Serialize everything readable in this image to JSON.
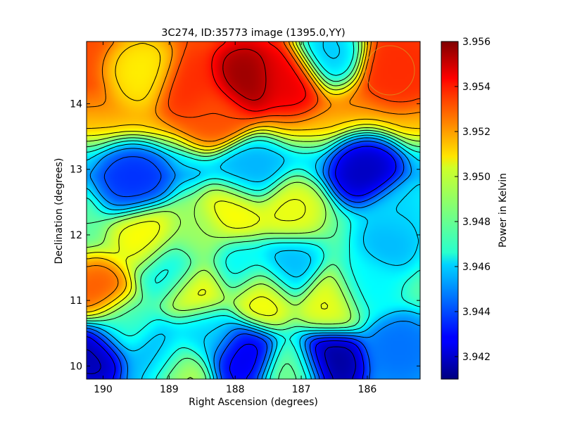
{
  "chart_data": {
    "type": "heatmap",
    "title": "3C274, ID:35773 image (1395.0,YY)",
    "xlabel": "Right Ascension (degrees)",
    "ylabel": "Declination (degrees)",
    "colorbar_label": "Power in Kelvin",
    "x_axis": {
      "range": [
        190.25,
        185.2
      ],
      "direction": "decreasing",
      "ticks": [
        190,
        189,
        188,
        187,
        186
      ]
    },
    "y_axis": {
      "range": [
        9.8,
        14.95
      ],
      "ticks": [
        10,
        11,
        12,
        13,
        14
      ]
    },
    "colorbar": {
      "range": [
        3.941,
        3.956
      ],
      "ticks": [
        "3.942",
        "3.944",
        "3.946",
        "3.948",
        "3.950",
        "3.952",
        "3.954",
        "3.956"
      ]
    },
    "colormap": "jet",
    "contours": true,
    "features": [
      {
        "ra": 187.85,
        "dec": 14.38,
        "value": 3.9557,
        "kind": "peak"
      },
      {
        "ra": 187.2,
        "dec": 14.4,
        "value": 3.9545,
        "kind": "peak"
      },
      {
        "ra": 188.7,
        "dec": 14.25,
        "value": 3.9535,
        "kind": "peak"
      },
      {
        "ra": 188.3,
        "dec": 13.85,
        "value": 3.953,
        "kind": "peak"
      },
      {
        "ra": 185.5,
        "dec": 14.55,
        "value": 3.9535,
        "kind": "peak"
      },
      {
        "ra": 189.4,
        "dec": 14.5,
        "value": 3.9505,
        "kind": "saddle"
      },
      {
        "ra": 186.0,
        "dec": 12.95,
        "value": 3.9418,
        "kind": "trough"
      },
      {
        "ra": 189.55,
        "dec": 12.82,
        "value": 3.9435,
        "kind": "trough"
      },
      {
        "ra": 187.75,
        "dec": 12.95,
        "value": 3.9455,
        "kind": "trough"
      },
      {
        "ra": 186.6,
        "dec": 14.8,
        "value": 3.9455,
        "kind": "trough"
      },
      {
        "ra": 185.55,
        "dec": 12.35,
        "value": 3.946,
        "kind": "trough"
      },
      {
        "ra": 185.65,
        "dec": 11.9,
        "value": 3.9455,
        "kind": "trough"
      },
      {
        "ra": 187.2,
        "dec": 11.5,
        "value": 3.9455,
        "kind": "trough"
      },
      {
        "ra": 188.95,
        "dec": 11.5,
        "value": 3.9465,
        "kind": "trough"
      },
      {
        "ra": 187.95,
        "dec": 11.5,
        "value": 3.9465,
        "kind": "trough"
      },
      {
        "ra": 188.0,
        "dec": 12.35,
        "value": 3.9505,
        "kind": "peak"
      },
      {
        "ra": 187.2,
        "dec": 12.38,
        "value": 3.9502,
        "kind": "peak"
      },
      {
        "ra": 189.35,
        "dec": 11.95,
        "value": 3.9505,
        "kind": "peak"
      },
      {
        "ra": 188.6,
        "dec": 11.95,
        "value": 3.949,
        "kind": "saddle"
      },
      {
        "ra": 190.1,
        "dec": 11.12,
        "value": 3.953,
        "kind": "peak"
      },
      {
        "ra": 188.55,
        "dec": 11.15,
        "value": 3.9505,
        "kind": "peak"
      },
      {
        "ra": 187.6,
        "dec": 11.05,
        "value": 3.9505,
        "kind": "peak"
      },
      {
        "ra": 186.55,
        "dec": 10.95,
        "value": 3.9502,
        "kind": "peak"
      },
      {
        "ra": 189.75,
        "dec": 10.6,
        "value": 3.9475,
        "kind": "saddle"
      },
      {
        "ra": 186.0,
        "dec": 11.2,
        "value": 3.9465,
        "kind": "saddle"
      },
      {
        "ra": 190.15,
        "dec": 10.2,
        "value": 3.9415,
        "kind": "trough"
      },
      {
        "ra": 186.55,
        "dec": 10.05,
        "value": 3.9412,
        "kind": "trough"
      },
      {
        "ra": 187.9,
        "dec": 10.15,
        "value": 3.9425,
        "kind": "trough"
      },
      {
        "ra": 189.2,
        "dec": 10.1,
        "value": 3.9455,
        "kind": "trough"
      },
      {
        "ra": 188.4,
        "dec": 10.5,
        "value": 3.946,
        "kind": "trough"
      },
      {
        "ra": 185.5,
        "dec": 10.3,
        "value": 3.9445,
        "kind": "trough"
      },
      {
        "ra": 188.85,
        "dec": 9.85,
        "value": 3.9495,
        "kind": "peak"
      },
      {
        "ra": 187.1,
        "dec": 9.85,
        "value": 3.9485,
        "kind": "peak"
      }
    ]
  }
}
